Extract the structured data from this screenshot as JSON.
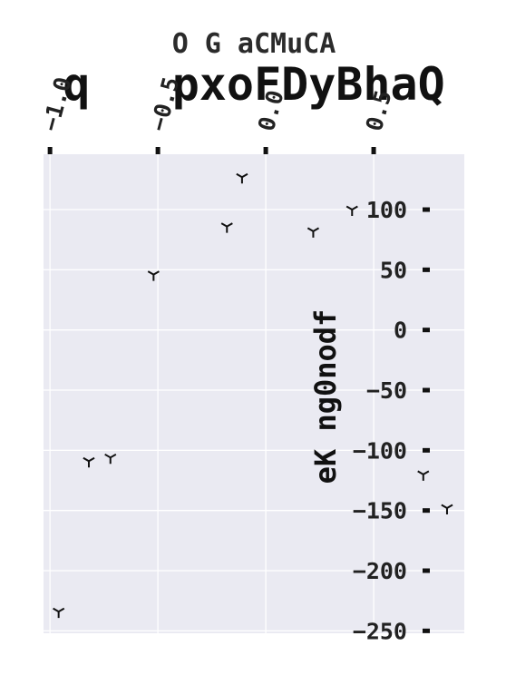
{
  "chart_data": {
    "type": "scatter",
    "suptitle": "O G aCMuCA",
    "title": "q   pxoFDyBhaQ",
    "xlabel": "",
    "ylabel": "eK ng0nodf",
    "marker": "tri_down",
    "grid": true,
    "xaxis_position": "top",
    "yaxis_position": "inside-right",
    "xlim": [
      -1.03,
      0.92
    ],
    "ylim": [
      -252,
      146
    ],
    "xticks": [
      -1.0,
      -0.5,
      0.0,
      0.5
    ],
    "xtick_labels": [
      "−1.0",
      "−0.5",
      "0.0",
      "0.5"
    ],
    "yticks": [
      100,
      50,
      0,
      -50,
      -100,
      -150,
      -200,
      -250
    ],
    "ytick_labels": [
      "100",
      "50",
      "0",
      "−50",
      "−100",
      "−150",
      "−200",
      "−250"
    ],
    "x": [
      -0.96,
      -0.82,
      -0.72,
      -0.52,
      -0.18,
      -0.11,
      0.22,
      0.4,
      0.73,
      0.84
    ],
    "y": [
      -234,
      -109,
      -106,
      46,
      86,
      127,
      82,
      100,
      -120,
      -148
    ],
    "colors": {
      "plot_background": "#eaeaf2",
      "grid": "#ffffff",
      "marker": "#111111",
      "axes": "#111111"
    }
  }
}
